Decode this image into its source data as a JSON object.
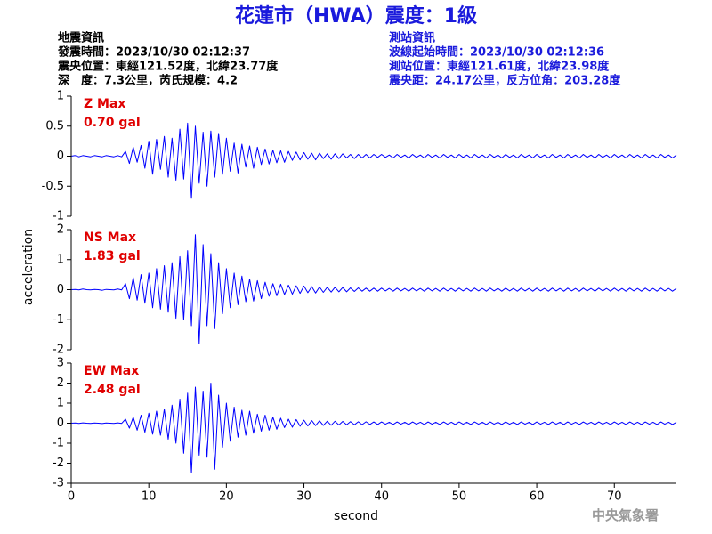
{
  "header": {
    "title": "花蓮市（HWA）震度：1級",
    "left": [
      "地震資訊",
      "發震時間：2023/10/30 02:12:37",
      "震央位置：東經121.52度，北緯23.77度",
      "深　度：7.3公里，芮氏規模：4.2"
    ],
    "right": [
      "測站資訊",
      "波線起始時間：2023/10/30 02:12:36",
      "測站位置：東經121.61度，北緯23.98度",
      "震央距：24.17公里，反方位角：203.28度"
    ]
  },
  "watermark": "中央氣象署",
  "chart_data": [
    {
      "type": "line",
      "annotation": "Z Max",
      "annotation_value": "0.70 gal",
      "annotation_color": "#e00000",
      "color": "#0000ff",
      "xlim": [
        0,
        78
      ],
      "ylim": [
        -1,
        1
      ],
      "yticks": [
        -1,
        -0.5,
        0,
        0.5,
        1
      ],
      "x": [
        0,
        0.5,
        1,
        1.5,
        2,
        2.5,
        3,
        3.5,
        4,
        4.5,
        5,
        5.5,
        6,
        6.5,
        7,
        7.5,
        8,
        8.5,
        9,
        9.5,
        10,
        10.5,
        11,
        11.5,
        12,
        12.5,
        13,
        13.5,
        14,
        14.5,
        15,
        15.5,
        16,
        16.5,
        17,
        17.5,
        18,
        18.5,
        19,
        19.5,
        20,
        20.5,
        21,
        21.5,
        22,
        22.5,
        23,
        23.5,
        24,
        24.5,
        25,
        25.5,
        26,
        26.5,
        27,
        27.5,
        28,
        28.5,
        29,
        29.5,
        30,
        30.5,
        31,
        31.5,
        32,
        32.5,
        33,
        33.5,
        34,
        34.5,
        35,
        35.5,
        36,
        36.5,
        37,
        37.5,
        38,
        38.5,
        39,
        39.5,
        40,
        40.5,
        41,
        41.5,
        42,
        42.5,
        43,
        43.5,
        44,
        44.5,
        45,
        45.5,
        46,
        46.5,
        47,
        47.5,
        48,
        48.5,
        49,
        49.5,
        50,
        50.5,
        51,
        51.5,
        52,
        52.5,
        53,
        53.5,
        54,
        54.5,
        55,
        55.5,
        56,
        56.5,
        57,
        57.5,
        58,
        58.5,
        59,
        59.5,
        60,
        60.5,
        61,
        61.5,
        62,
        62.5,
        63,
        63.5,
        64,
        64.5,
        65,
        65.5,
        66,
        66.5,
        67,
        67.5,
        68,
        68.5,
        69,
        69.5,
        70,
        70.5,
        71,
        71.5,
        72,
        72.5,
        73,
        73.5,
        74,
        74.5,
        75,
        75.5,
        76,
        76.5,
        77,
        77.5,
        78
      ],
      "values": [
        0,
        0.01,
        -0.01,
        0.01,
        0,
        -0.01,
        0.01,
        0,
        -0.01,
        0.01,
        0,
        -0.01,
        0.01,
        -0.01,
        0.08,
        -0.12,
        0.15,
        -0.1,
        0.18,
        -0.2,
        0.25,
        -0.3,
        0.28,
        -0.22,
        0.33,
        -0.35,
        0.3,
        -0.4,
        0.45,
        -0.38,
        0.55,
        -0.7,
        0.5,
        -0.45,
        0.4,
        -0.5,
        0.42,
        -0.35,
        0.38,
        -0.3,
        0.3,
        -0.25,
        0.22,
        -0.28,
        0.2,
        -0.18,
        0.17,
        -0.2,
        0.15,
        -0.14,
        0.12,
        -0.13,
        0.1,
        -0.11,
        0.09,
        -0.1,
        0.08,
        -0.07,
        0.07,
        -0.06,
        0.06,
        -0.05,
        0.05,
        -0.06,
        0.05,
        -0.04,
        0.04,
        -0.05,
        0.04,
        -0.04,
        0.04,
        -0.03,
        0.03,
        -0.04,
        0.03,
        -0.03,
        0.03,
        -0.03,
        0.03,
        -0.02,
        0.03,
        -0.02,
        0.02,
        -0.03,
        0.03,
        -0.02,
        0.02,
        -0.03,
        0.03,
        -0.02,
        0.02,
        -0.03,
        0.03,
        -0.02,
        0.02,
        -0.03,
        0.03,
        -0.02,
        0.02,
        -0.03,
        0.03,
        -0.02,
        0.02,
        -0.03,
        0.03,
        -0.02,
        0.02,
        -0.03,
        0.03,
        -0.02,
        0.02,
        -0.03,
        0.03,
        -0.02,
        0.02,
        -0.03,
        0.03,
        -0.02,
        0.02,
        -0.03,
        0.03,
        -0.02,
        0.02,
        -0.03,
        0.03,
        -0.02,
        0.02,
        -0.03,
        0.03,
        -0.02,
        0.02,
        -0.03,
        0.03,
        -0.02,
        0.02,
        -0.03,
        0.03,
        -0.02,
        0.02,
        -0.03,
        0.03,
        -0.02,
        0.02,
        -0.03,
        0.03,
        -0.02,
        0.02,
        -0.03,
        0.03,
        -0.02,
        0.02,
        -0.03,
        0.03,
        -0.02,
        0.02,
        -0.03,
        0.02
      ]
    },
    {
      "type": "line",
      "annotation": "NS Max",
      "annotation_value": "1.83 gal",
      "annotation_color": "#e00000",
      "color": "#0000ff",
      "ylabel": "acceleration",
      "xlim": [
        0,
        78
      ],
      "ylim": [
        -2,
        2
      ],
      "yticks": [
        -2,
        -1,
        0,
        1,
        2
      ],
      "x": [
        0,
        0.5,
        1,
        1.5,
        2,
        2.5,
        3,
        3.5,
        4,
        4.5,
        5,
        5.5,
        6,
        6.5,
        7,
        7.5,
        8,
        8.5,
        9,
        9.5,
        10,
        10.5,
        11,
        11.5,
        12,
        12.5,
        13,
        13.5,
        14,
        14.5,
        15,
        15.5,
        16,
        16.5,
        17,
        17.5,
        18,
        18.5,
        19,
        19.5,
        20,
        20.5,
        21,
        21.5,
        22,
        22.5,
        23,
        23.5,
        24,
        24.5,
        25,
        25.5,
        26,
        26.5,
        27,
        27.5,
        28,
        28.5,
        29,
        29.5,
        30,
        30.5,
        31,
        31.5,
        32,
        32.5,
        33,
        33.5,
        34,
        34.5,
        35,
        35.5,
        36,
        36.5,
        37,
        37.5,
        38,
        38.5,
        39,
        39.5,
        40,
        40.5,
        41,
        41.5,
        42,
        42.5,
        43,
        43.5,
        44,
        44.5,
        45,
        45.5,
        46,
        46.5,
        47,
        47.5,
        48,
        48.5,
        49,
        49.5,
        50,
        50.5,
        51,
        51.5,
        52,
        52.5,
        53,
        53.5,
        54,
        54.5,
        55,
        55.5,
        56,
        56.5,
        57,
        57.5,
        58,
        58.5,
        59,
        59.5,
        60,
        60.5,
        61,
        61.5,
        62,
        62.5,
        63,
        63.5,
        64,
        64.5,
        65,
        65.5,
        66,
        66.5,
        67,
        67.5,
        68,
        68.5,
        69,
        69.5,
        70,
        70.5,
        71,
        71.5,
        72,
        72.5,
        73,
        73.5,
        74,
        74.5,
        75,
        75.5,
        76,
        76.5,
        77,
        77.5,
        78
      ],
      "values": [
        0,
        0.01,
        -0.01,
        0.02,
        0,
        -0.01,
        0.01,
        0,
        -0.02,
        0.01,
        0,
        -0.01,
        0.02,
        -0.01,
        0.2,
        -0.3,
        0.4,
        -0.35,
        0.5,
        -0.45,
        0.55,
        -0.6,
        0.7,
        -0.65,
        0.8,
        -0.75,
        0.9,
        -0.95,
        1.1,
        -1.0,
        1.3,
        -1.2,
        1.83,
        -1.8,
        1.5,
        -1.2,
        1.2,
        -1.3,
        0.9,
        -0.8,
        0.7,
        -0.6,
        0.55,
        -0.5,
        0.45,
        -0.4,
        0.35,
        -0.38,
        0.3,
        -0.3,
        0.25,
        -0.22,
        0.2,
        -0.2,
        0.18,
        -0.16,
        0.15,
        -0.15,
        0.13,
        -0.12,
        0.12,
        -0.1,
        0.1,
        -0.11,
        0.09,
        -0.09,
        0.08,
        -0.08,
        0.08,
        -0.07,
        0.07,
        -0.07,
        0.06,
        -0.06,
        0.06,
        -0.05,
        0.05,
        -0.05,
        0.05,
        -0.05,
        0.05,
        -0.04,
        0.04,
        -0.05,
        0.05,
        -0.04,
        0.04,
        -0.05,
        0.05,
        -0.04,
        0.04,
        -0.05,
        0.05,
        -0.04,
        0.04,
        -0.05,
        0.05,
        -0.04,
        0.04,
        -0.05,
        0.05,
        -0.04,
        0.04,
        -0.05,
        0.05,
        -0.04,
        0.04,
        -0.05,
        0.05,
        -0.04,
        0.04,
        -0.05,
        0.05,
        -0.04,
        0.04,
        -0.05,
        0.05,
        -0.04,
        0.04,
        -0.05,
        0.05,
        -0.04,
        0.04,
        -0.05,
        0.05,
        -0.04,
        0.04,
        -0.05,
        0.05,
        -0.04,
        0.04,
        -0.05,
        0.05,
        -0.04,
        0.04,
        -0.05,
        0.05,
        -0.04,
        0.04,
        -0.05,
        0.05,
        -0.04,
        0.04,
        -0.05,
        0.05,
        -0.04,
        0.04,
        -0.05,
        0.05,
        -0.04,
        0.04,
        -0.05,
        0.05,
        -0.04,
        0.04,
        -0.05,
        0.04
      ]
    },
    {
      "type": "line",
      "annotation": "EW Max",
      "annotation_value": "2.48 gal",
      "annotation_color": "#e00000",
      "color": "#0000ff",
      "xlabel": "second",
      "xlim": [
        0,
        78
      ],
      "xticks": [
        0,
        10,
        20,
        30,
        40,
        50,
        60,
        70
      ],
      "ylim": [
        -3,
        3
      ],
      "yticks": [
        -3,
        -2,
        -1,
        0,
        1,
        2,
        3
      ],
      "x": [
        0,
        0.5,
        1,
        1.5,
        2,
        2.5,
        3,
        3.5,
        4,
        4.5,
        5,
        5.5,
        6,
        6.5,
        7,
        7.5,
        8,
        8.5,
        9,
        9.5,
        10,
        10.5,
        11,
        11.5,
        12,
        12.5,
        13,
        13.5,
        14,
        14.5,
        15,
        15.5,
        16,
        16.5,
        17,
        17.5,
        18,
        18.5,
        19,
        19.5,
        20,
        20.5,
        21,
        21.5,
        22,
        22.5,
        23,
        23.5,
        24,
        24.5,
        25,
        25.5,
        26,
        26.5,
        27,
        27.5,
        28,
        28.5,
        29,
        29.5,
        30,
        30.5,
        31,
        31.5,
        32,
        32.5,
        33,
        33.5,
        34,
        34.5,
        35,
        35.5,
        36,
        36.5,
        37,
        37.5,
        38,
        38.5,
        39,
        39.5,
        40,
        40.5,
        41,
        41.5,
        42,
        42.5,
        43,
        43.5,
        44,
        44.5,
        45,
        45.5,
        46,
        46.5,
        47,
        47.5,
        48,
        48.5,
        49,
        49.5,
        50,
        50.5,
        51,
        51.5,
        52,
        52.5,
        53,
        53.5,
        54,
        54.5,
        55,
        55.5,
        56,
        56.5,
        57,
        57.5,
        58,
        58.5,
        59,
        59.5,
        60,
        60.5,
        61,
        61.5,
        62,
        62.5,
        63,
        63.5,
        64,
        64.5,
        65,
        65.5,
        66,
        66.5,
        67,
        67.5,
        68,
        68.5,
        69,
        69.5,
        70,
        70.5,
        71,
        71.5,
        72,
        72.5,
        73,
        73.5,
        74,
        74.5,
        75,
        75.5,
        76,
        76.5,
        77,
        77.5,
        78
      ],
      "values": [
        0,
        0.01,
        -0.01,
        0.02,
        0,
        -0.01,
        0.01,
        0,
        -0.02,
        0.01,
        0,
        -0.01,
        0.02,
        -0.01,
        0.2,
        -0.25,
        0.3,
        -0.35,
        0.4,
        -0.45,
        0.5,
        -0.55,
        0.6,
        -0.6,
        0.7,
        -0.8,
        0.9,
        -1.0,
        1.2,
        -1.5,
        1.5,
        -2.48,
        1.8,
        -1.6,
        1.6,
        -1.7,
        2.0,
        -2.3,
        1.4,
        -1.2,
        1.0,
        -0.9,
        0.8,
        -0.7,
        0.65,
        -0.6,
        0.6,
        -0.5,
        0.45,
        -0.4,
        0.4,
        -0.35,
        0.3,
        -0.3,
        0.25,
        -0.22,
        0.2,
        -0.2,
        0.18,
        -0.15,
        0.15,
        -0.14,
        0.13,
        -0.12,
        0.12,
        -0.11,
        0.1,
        -0.1,
        0.1,
        -0.09,
        0.09,
        -0.08,
        0.08,
        -0.08,
        0.07,
        -0.07,
        0.07,
        -0.06,
        0.06,
        -0.06,
        0.06,
        -0.05,
        0.05,
        -0.06,
        0.06,
        -0.05,
        0.05,
        -0.06,
        0.06,
        -0.05,
        0.05,
        -0.06,
        0.06,
        -0.05,
        0.05,
        -0.06,
        0.06,
        -0.05,
        0.05,
        -0.06,
        0.06,
        -0.05,
        0.05,
        -0.06,
        0.06,
        -0.05,
        0.05,
        -0.06,
        0.06,
        -0.05,
        0.05,
        -0.06,
        0.06,
        -0.05,
        0.05,
        -0.06,
        0.06,
        -0.05,
        0.05,
        -0.06,
        0.06,
        -0.05,
        0.05,
        -0.06,
        0.06,
        -0.05,
        0.05,
        -0.06,
        0.06,
        -0.05,
        0.05,
        -0.06,
        0.06,
        -0.05,
        0.05,
        -0.06,
        0.06,
        -0.05,
        0.05,
        -0.06,
        0.06,
        -0.05,
        0.05,
        -0.06,
        0.06,
        -0.05,
        0.05,
        -0.06,
        0.06,
        -0.05,
        0.05,
        -0.06,
        0.06,
        -0.05,
        0.05,
        -0.06,
        0.05
      ]
    }
  ]
}
